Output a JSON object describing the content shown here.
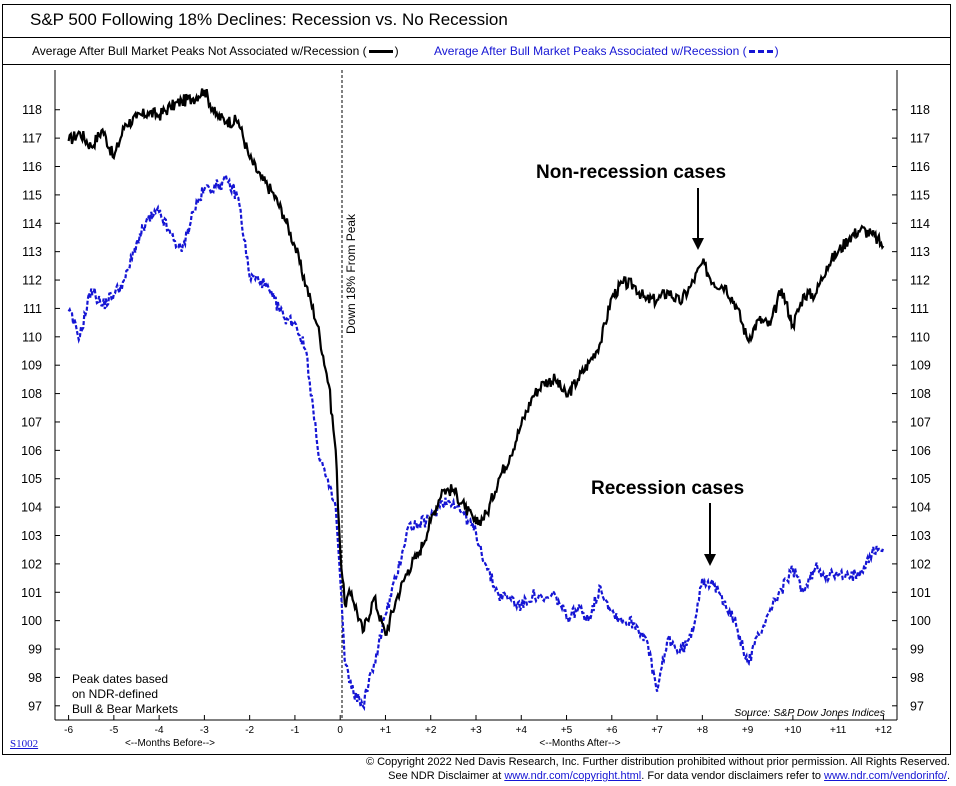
{
  "title": "S&P 500 Following 18% Declines: Recession vs. No Recession",
  "legend": {
    "nonrec_label": "Average After Bull Market Peaks Not Associated w/Recession",
    "rec_label": "Average After Bull Market Peaks Associated w/Recession",
    "paren_open": "(",
    "paren_close": ")"
  },
  "annotations": {
    "vline_label": "Down 18% From Peak",
    "nonrec_cases": "Non-recession cases",
    "rec_cases": "Recession cases",
    "note": [
      "Peak dates based",
      "on NDR-defined",
      "Bull & Bear Markets"
    ],
    "source": "Source: S&P Dow Jones Indices",
    "months_before": "<--Months Before-->",
    "months_after": "<--Months After-->"
  },
  "footer": {
    "code": "S1002",
    "copyright": "© Copyright 2022 Ned Davis Research, Inc.  Further distribution prohibited without prior permission.  All Rights Reserved.",
    "disclaimer_pre": "See NDR Disclaimer at ",
    "link1": "www.ndr.com/copyright.html",
    "disclaimer_mid": ".  For data vendor disclaimers refer to ",
    "link2": "www.ndr.com/vendorinfo/",
    "disclaimer_end": "."
  },
  "colors": {
    "nonrecession": "#000000",
    "recession": "#1515d4"
  },
  "chart_data": {
    "type": "line",
    "title": "S&P 500 Following 18% Declines: Recession vs. No Recession",
    "xlabel": "",
    "ylabel": "",
    "x_ticks": [
      "-6",
      "-5",
      "-4",
      "-3",
      "-2",
      "-1",
      "0",
      "+1",
      "+2",
      "+3",
      "+4",
      "+5",
      "+6",
      "+7",
      "+8",
      "+9",
      "+10",
      "+11",
      "+12"
    ],
    "y_ticks": [
      97,
      98,
      99,
      100,
      101,
      102,
      103,
      104,
      105,
      106,
      107,
      108,
      109,
      110,
      111,
      112,
      113,
      114,
      115,
      116,
      117,
      118
    ],
    "xlim": [
      -6.3,
      12.3
    ],
    "ylim": [
      96.5,
      119.4
    ],
    "grid": false,
    "series": [
      {
        "name": "Average After Bull Market Peaks Not Associated w/Recession",
        "style": "solid",
        "x": [
          -6,
          -5.75,
          -5.5,
          -5.25,
          -5,
          -4.75,
          -4.5,
          -4.25,
          -4,
          -3.75,
          -3.5,
          -3.25,
          -3,
          -2.75,
          -2.5,
          -2.25,
          -2,
          -1.75,
          -1.5,
          -1.25,
          -1,
          -0.75,
          -0.5,
          -0.25,
          -0.1,
          0,
          0.1,
          0.25,
          0.5,
          0.75,
          1,
          1.25,
          1.5,
          1.75,
          2,
          2.25,
          2.5,
          2.75,
          3,
          3.25,
          3.5,
          3.75,
          4,
          4.25,
          4.5,
          4.75,
          5,
          5.25,
          5.5,
          5.75,
          6,
          6.25,
          6.5,
          6.75,
          7,
          7.25,
          7.5,
          7.75,
          8,
          8.25,
          8.5,
          8.75,
          9,
          9.25,
          9.5,
          9.75,
          10,
          10.25,
          10.5,
          10.75,
          11,
          11.25,
          11.5,
          11.75,
          12
        ],
        "values": [
          116.9,
          117.2,
          116.7,
          117.3,
          116.3,
          117.5,
          117.7,
          117.9,
          117.8,
          118.1,
          118.3,
          118.4,
          118.7,
          117.8,
          117.6,
          117.6,
          116.3,
          115.6,
          115.1,
          114.3,
          113.2,
          111.8,
          110.4,
          108.3,
          106.0,
          102.5,
          100.6,
          101.0,
          99.6,
          100.8,
          99.5,
          100.8,
          101.8,
          102.4,
          103.5,
          104.6,
          104.6,
          104.0,
          103.4,
          103.8,
          105.0,
          105.8,
          106.9,
          107.9,
          108.4,
          108.5,
          107.9,
          108.5,
          109.1,
          109.8,
          111.4,
          111.9,
          111.8,
          111.3,
          111.3,
          111.6,
          111.2,
          111.8,
          112.6,
          111.9,
          111.8,
          111.1,
          109.9,
          110.6,
          110.4,
          111.7,
          110.4,
          111.5,
          111.5,
          112.5,
          113.0,
          113.5,
          113.8,
          113.6,
          113.2
        ]
      },
      {
        "name": "Average After Bull Market Peaks Associated w/Recession",
        "style": "dashed",
        "x": [
          -6,
          -5.75,
          -5.5,
          -5.25,
          -5,
          -4.75,
          -4.5,
          -4.25,
          -4,
          -3.75,
          -3.5,
          -3.25,
          -3,
          -2.75,
          -2.5,
          -2.25,
          -2,
          -1.75,
          -1.5,
          -1.25,
          -1,
          -0.75,
          -0.5,
          -0.25,
          -0.1,
          0,
          0.1,
          0.25,
          0.5,
          0.75,
          1,
          1.25,
          1.5,
          1.75,
          2,
          2.25,
          2.5,
          2.75,
          3,
          3.25,
          3.5,
          3.75,
          4,
          4.25,
          4.5,
          4.75,
          5,
          5.25,
          5.5,
          5.75,
          6,
          6.25,
          6.5,
          6.75,
          7,
          7.25,
          7.5,
          7.75,
          8,
          8.25,
          8.5,
          8.75,
          9,
          9.25,
          9.5,
          9.75,
          10,
          10.25,
          10.5,
          10.75,
          11,
          11.25,
          11.5,
          11.75,
          12
        ],
        "values": [
          110.9,
          110.0,
          111.7,
          111.1,
          111.5,
          112.0,
          113.3,
          114.1,
          114.4,
          113.6,
          113.0,
          114.4,
          115.2,
          115.3,
          115.5,
          114.9,
          112.1,
          112.0,
          111.4,
          110.7,
          110.5,
          109.5,
          106.1,
          104.7,
          104.0,
          101.5,
          98.6,
          97.6,
          97.0,
          98.5,
          100.2,
          101.6,
          103.3,
          103.4,
          103.6,
          104.2,
          104.2,
          103.7,
          103.1,
          101.8,
          100.9,
          100.8,
          100.5,
          100.9,
          100.7,
          100.9,
          100.1,
          100.4,
          100.1,
          101.2,
          100.3,
          100.0,
          99.9,
          99.4,
          97.5,
          99.4,
          98.9,
          99.4,
          101.5,
          101.2,
          100.7,
          99.8,
          98.5,
          99.5,
          100.4,
          101.1,
          101.8,
          101.0,
          101.9,
          101.6,
          101.6,
          101.5,
          101.8,
          102.4,
          102.6
        ]
      }
    ]
  }
}
